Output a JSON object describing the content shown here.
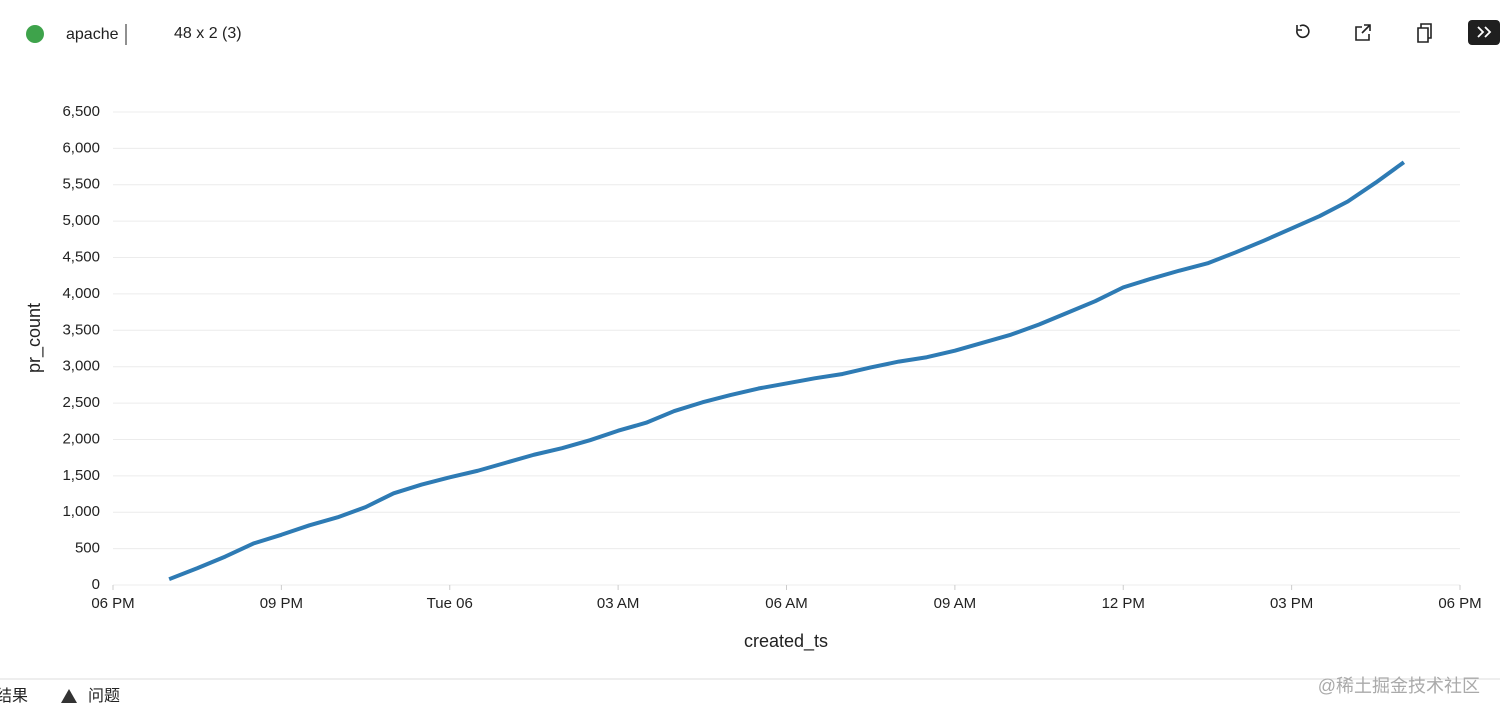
{
  "header": {
    "title": "apache",
    "shape": "48 x 2 (3)"
  },
  "chart_data": {
    "type": "line",
    "x_label": "created_ts",
    "y_label": "pr_count",
    "x": [
      1,
      1.5,
      2,
      2.5,
      3,
      3.5,
      4,
      4.5,
      5,
      5.5,
      6,
      6.5,
      7,
      7.5,
      8,
      8.5,
      9,
      9.5,
      10,
      10.5,
      11,
      11.5,
      12,
      12.5,
      13,
      13.5,
      14,
      14.5,
      15,
      15.5,
      16,
      16.5,
      17,
      17.5,
      18,
      18.5,
      19,
      19.5,
      20,
      20.5,
      21,
      21.5,
      22,
      22.5,
      23
    ],
    "series": [
      {
        "name": "pr_count",
        "color": "#2e7bb4",
        "values": [
          80,
          230,
          390,
          570,
          690,
          820,
          930,
          1070,
          1260,
          1380,
          1480,
          1570,
          1680,
          1790,
          1880,
          1990,
          2120,
          2230,
          2390,
          2510,
          2610,
          2700,
          2770,
          2840,
          2900,
          2990,
          3070,
          3130,
          3220,
          3330,
          3440,
          3580,
          3740,
          3900,
          4090,
          4210,
          4320,
          4420,
          4570,
          4730,
          4900,
          5070,
          5270,
          5530,
          5810
        ]
      }
    ],
    "xlim": [
      0,
      24
    ],
    "xticks": [
      {
        "value": 0,
        "label": "06 PM"
      },
      {
        "value": 3,
        "label": "09 PM"
      },
      {
        "value": 6,
        "label": "Tue 06"
      },
      {
        "value": 9,
        "label": "03 AM"
      },
      {
        "value": 12,
        "label": "06 AM"
      },
      {
        "value": 15,
        "label": "09 AM"
      },
      {
        "value": 18,
        "label": "12 PM"
      },
      {
        "value": 21,
        "label": "03 PM"
      },
      {
        "value": 24,
        "label": "06 PM"
      }
    ],
    "ylim": [
      0,
      6500
    ],
    "yticks": [
      0,
      500,
      {
        "value": 1000,
        "label": "1,000"
      },
      {
        "value": 1500,
        "label": "1,500"
      },
      {
        "value": 2000,
        "label": "2,000"
      },
      {
        "value": 2500,
        "label": "2,500"
      },
      {
        "value": 3000,
        "label": "3,000"
      },
      {
        "value": 3500,
        "label": "3,500"
      },
      {
        "value": 4000,
        "label": "4,000"
      },
      {
        "value": 4500,
        "label": "4,500"
      },
      {
        "value": 5000,
        "label": "5,000"
      },
      {
        "value": 5500,
        "label": "5,500"
      },
      {
        "value": 6000,
        "label": "6,000"
      },
      {
        "value": 6500,
        "label": "6,500"
      }
    ],
    "grid": true
  },
  "footer": {
    "tabs": [
      "结果",
      "问题"
    ],
    "watermark": "@稀土掘金技术社区"
  }
}
